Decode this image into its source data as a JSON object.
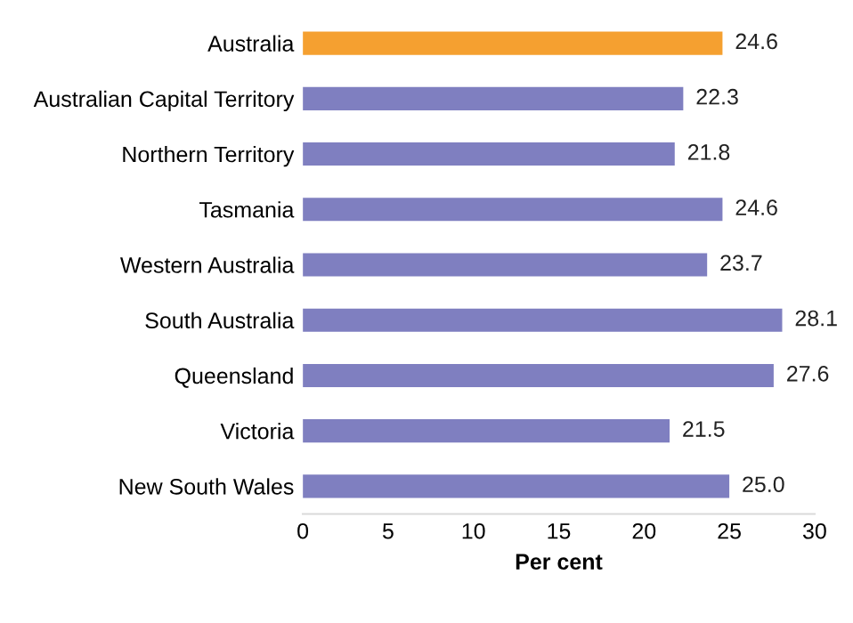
{
  "chart_data": {
    "type": "bar",
    "orientation": "horizontal",
    "xlabel": "Per cent",
    "categories": [
      "Australia",
      "Australian Capital Territory",
      "Northern Territory",
      "Tasmania",
      "Western Australia",
      "South Australia",
      "Queensland",
      "Victoria",
      "New South Wales"
    ],
    "values": [
      24.6,
      22.3,
      21.8,
      24.6,
      23.7,
      28.1,
      27.6,
      21.5,
      25.0
    ],
    "value_labels": [
      "24.6",
      "22.3",
      "21.8",
      "24.6",
      "23.7",
      "28.1",
      "27.6",
      "21.5",
      "25.0"
    ],
    "colors": [
      "#f5a030",
      "#7f7fc0",
      "#7f7fc0",
      "#7f7fc0",
      "#7f7fc0",
      "#7f7fc0",
      "#7f7fc0",
      "#7f7fc0",
      "#7f7fc0"
    ],
    "xlim": [
      0,
      30
    ],
    "xticks": [
      0,
      5,
      10,
      15,
      20,
      25,
      30
    ],
    "grid": false,
    "legend": false
  }
}
